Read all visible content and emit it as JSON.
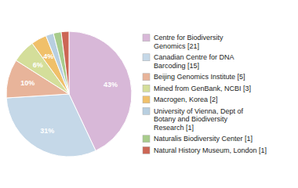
{
  "chart_data": {
    "type": "pie",
    "categories": [
      "Centre for Biodiversity\nGenomics [21]",
      "Canadian Centre for DNA\nBarcoding [15]",
      "Beijing Genomics Institute [5]",
      "Mined from GenBank, NCBI [3]",
      "Macrogen, Korea [2]",
      "University of Vienna, Dept of\nBotany and Biodiversity\nResearch [1]",
      "Naturalis Biodiversity Center [1]",
      "Natural History Museum, London [1]"
    ],
    "values": [
      43,
      31,
      10,
      6,
      4,
      2,
      2,
      2
    ],
    "value_labels": [
      "43%",
      "31%",
      "10%",
      "6%",
      "4%",
      null,
      null,
      null
    ],
    "colors": [
      "#d8b8d8",
      "#c5d8e8",
      "#e8b49a",
      "#d4de9a",
      "#f0c06a",
      "#b8cfe0",
      "#a8cc8c",
      "#cc6655"
    ],
    "data_labels": true,
    "legend": "right"
  }
}
